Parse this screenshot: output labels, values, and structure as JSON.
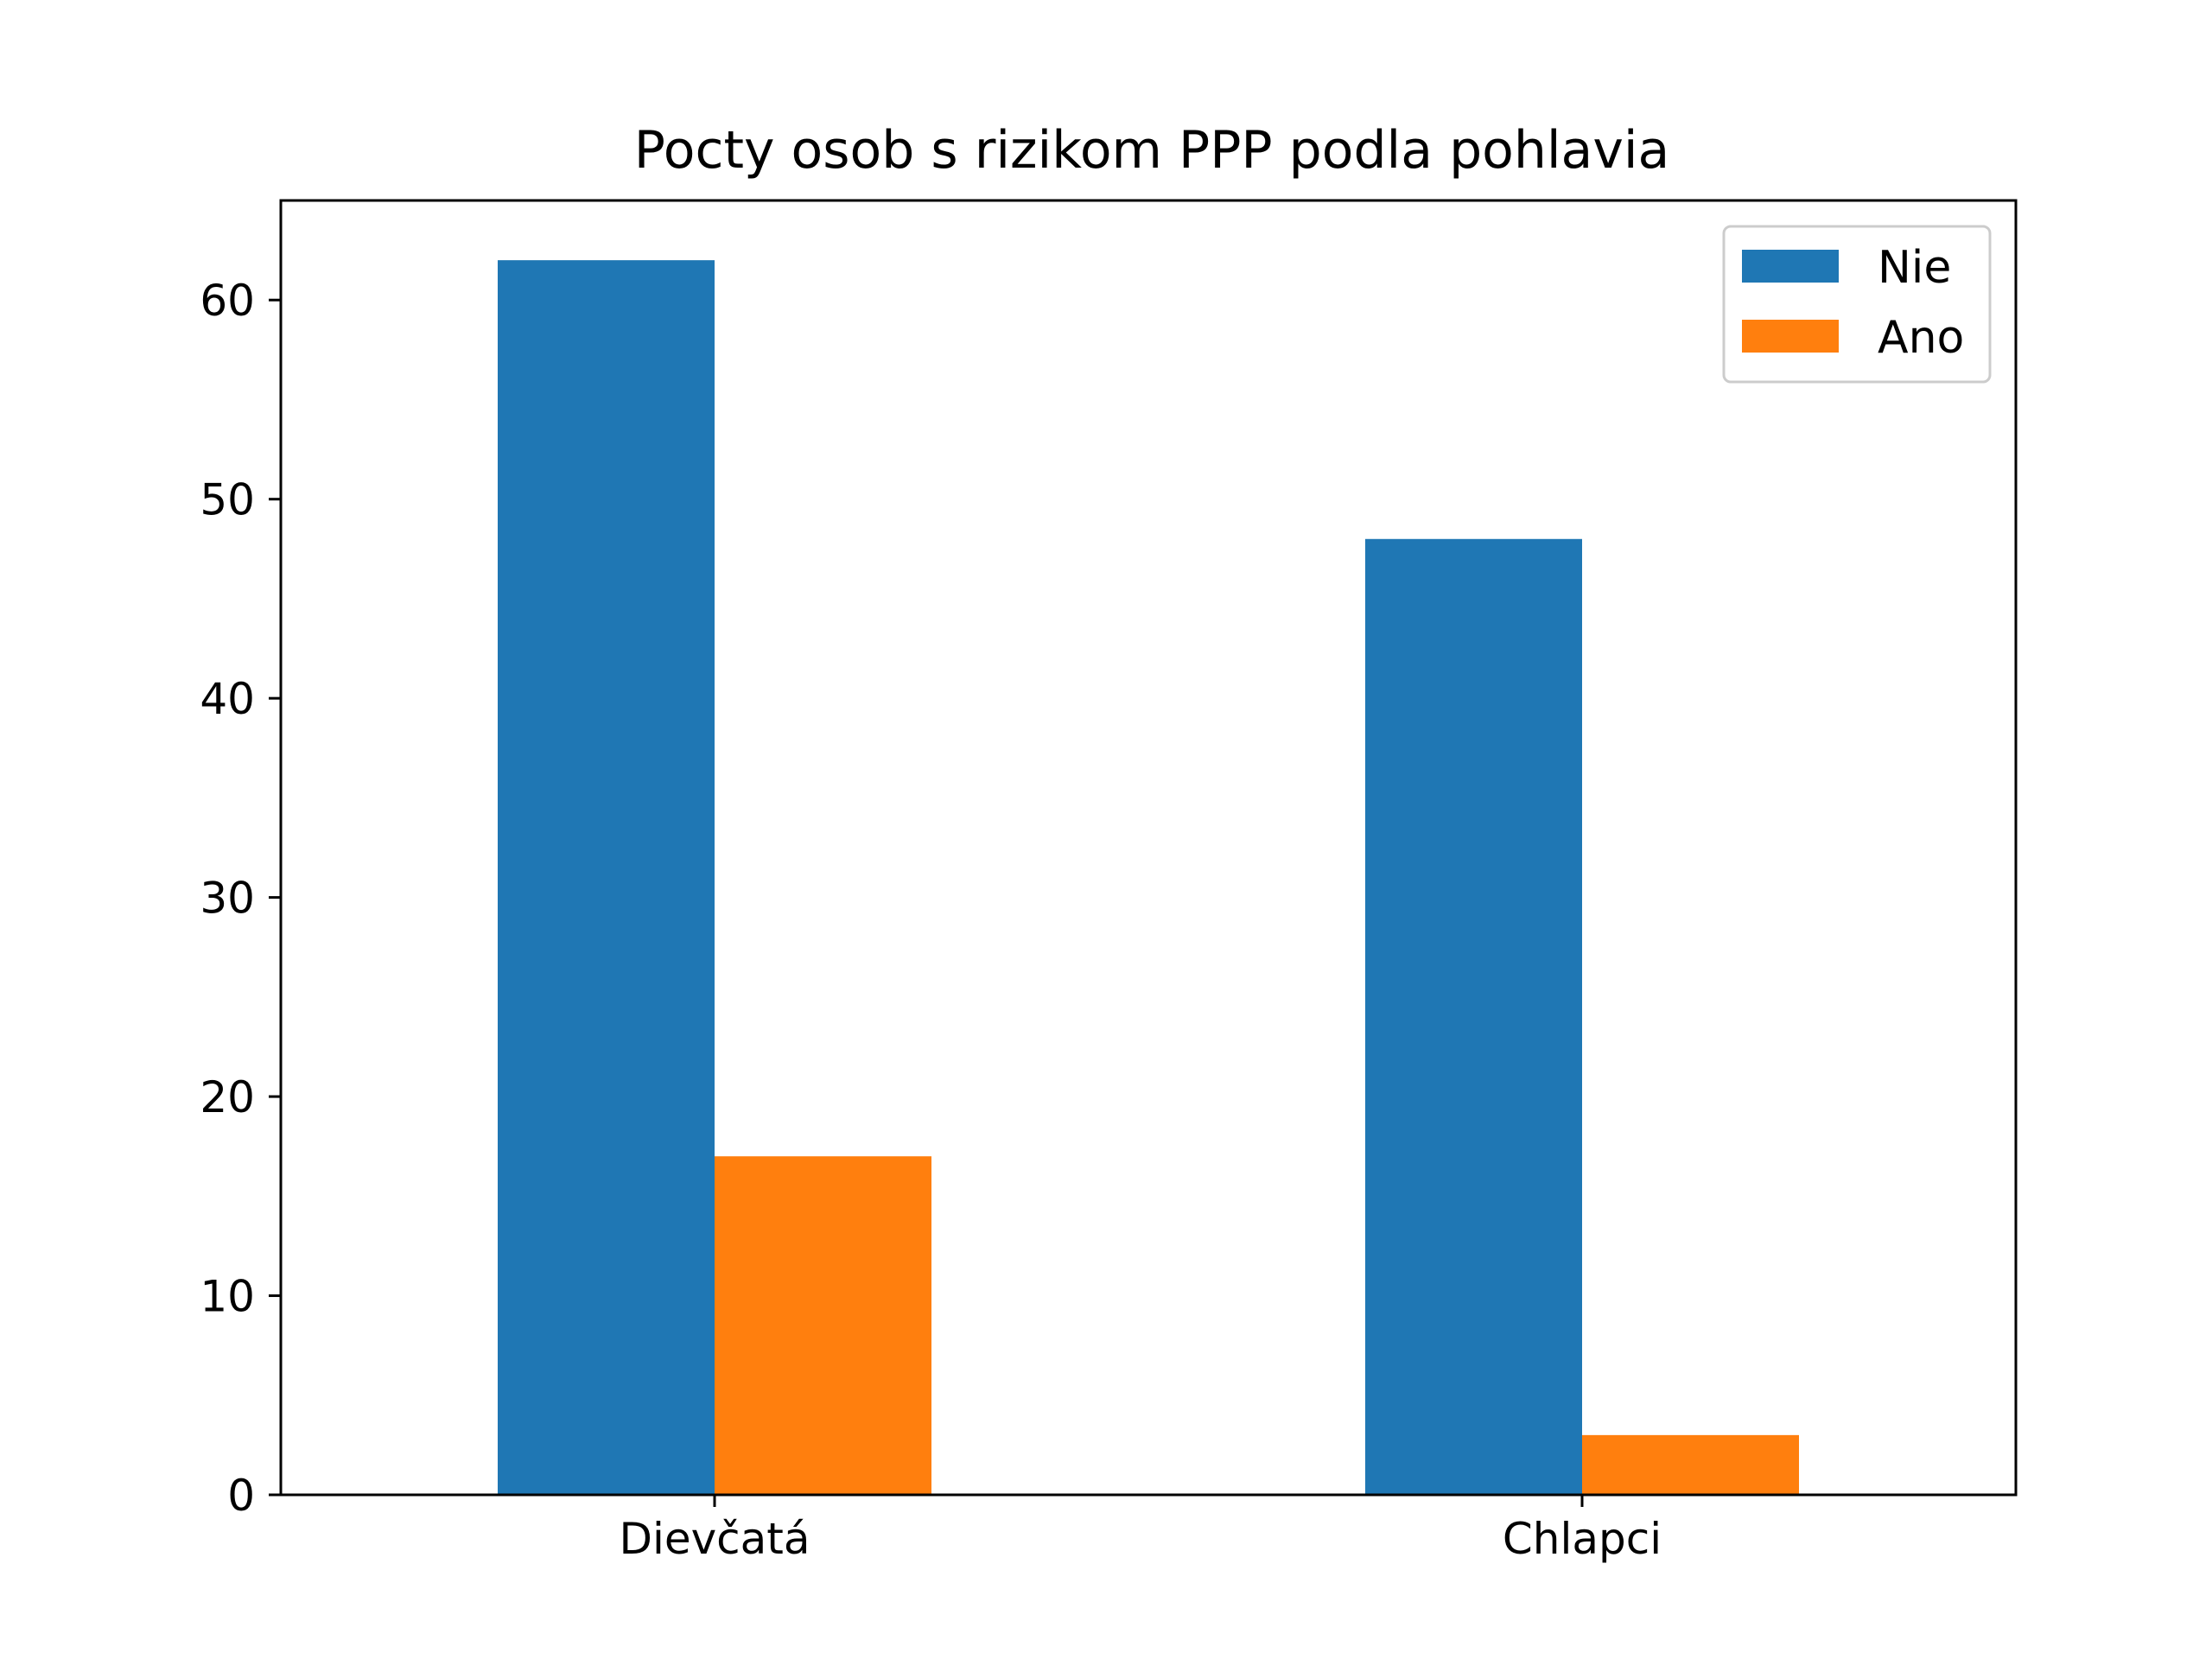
{
  "chart_data": {
    "type": "bar",
    "title": "Pocty osob s rizikom PPP podla pohlavia",
    "xlabel": "",
    "ylabel": "",
    "categories": [
      "Dievčatá",
      "Chlapci"
    ],
    "series": [
      {
        "name": "Nie",
        "values": [
          62,
          48
        ],
        "color": "#1f77b4"
      },
      {
        "name": "Ano",
        "values": [
          17,
          3
        ],
        "color": "#ff7f0e"
      }
    ],
    "yticks": [
      "0",
      "10",
      "20",
      "30",
      "40",
      "50",
      "60"
    ],
    "ylim": [
      0,
      65
    ],
    "grid": false,
    "legend_position": "top-right"
  }
}
